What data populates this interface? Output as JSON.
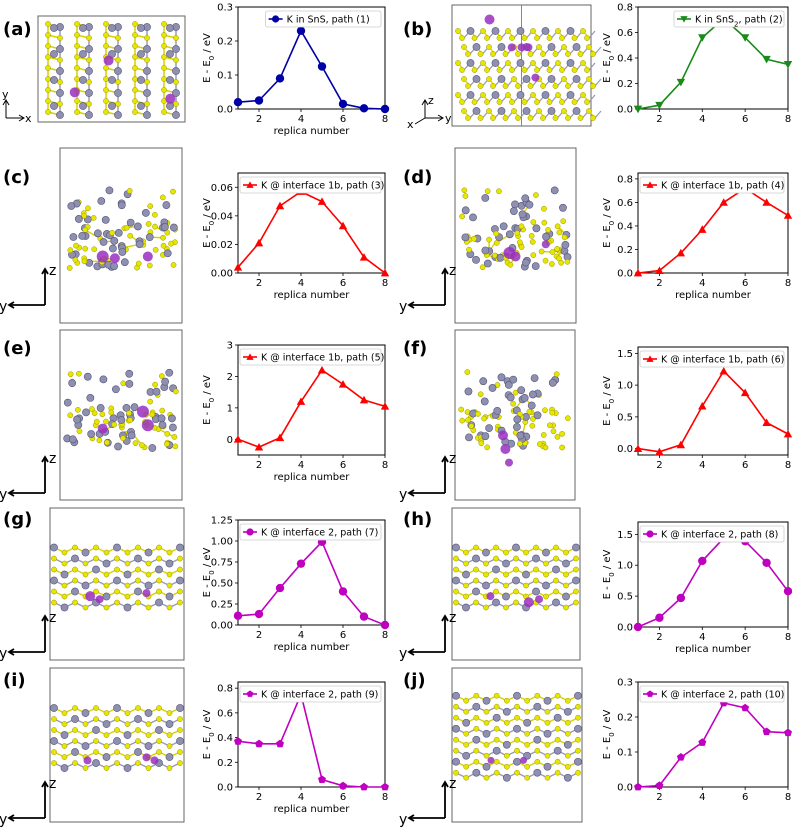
{
  "figure": {
    "colors": {
      "sn_atom": "#8f8fb0",
      "s_atom": "#e6e600",
      "bond_s": "#d8d000",
      "bond_sn": "#9a9ab8",
      "k_atom": "#9a2fc0"
    }
  },
  "chart_data": [
    {
      "panel": "(a)",
      "type": "line",
      "legend": "K in SnS, path (1)",
      "color": "#0000a8",
      "marker": "circle",
      "x": [
        1,
        2,
        3,
        4,
        5,
        6,
        7,
        8
      ],
      "values": [
        0.02,
        0.025,
        0.09,
        0.23,
        0.125,
        0.015,
        0.002,
        0.0
      ],
      "xlabel": "replica number",
      "ylabel": "E - E0 / eV",
      "ylabel_sub": "0",
      "xlim": [
        1,
        8
      ],
      "ylim": [
        0,
        0.3
      ],
      "xticks": [
        "2",
        "4",
        "6",
        "8"
      ],
      "yticks": [
        "0.0",
        "0.1",
        "0.2",
        "0.3"
      ],
      "ytick_values": [
        0,
        0.1,
        0.2,
        0.3
      ],
      "axes": {
        "x": "x",
        "y": "y"
      }
    },
    {
      "panel": "(b)",
      "type": "line",
      "legend": "K in SnS",
      "legend_sub": "2",
      "legend_tail": ", path (2)",
      "color": "#1a8a1a",
      "marker": "triangle-down",
      "x": [
        1,
        2,
        3,
        4,
        5,
        6,
        7,
        8
      ],
      "values": [
        0.0,
        0.03,
        0.21,
        0.56,
        0.71,
        0.56,
        0.39,
        0.35
      ],
      "xlabel": "",
      "ylabel": "E - E0 / eV",
      "ylabel_sub": "0",
      "xlim": [
        1,
        8
      ],
      "ylim": [
        0,
        0.8
      ],
      "xticks": [
        "2",
        "4",
        "6",
        "8"
      ],
      "yticks": [
        "0.0",
        "0.2",
        "0.4",
        "0.6",
        "0.8"
      ],
      "ytick_values": [
        0,
        0.2,
        0.4,
        0.6,
        0.8
      ],
      "axes": {
        "x": "x",
        "y": "y",
        "z": "z"
      }
    },
    {
      "panel": "(c)",
      "type": "line",
      "legend": "K @ interface 1b, path (3)",
      "color": "#ff0000",
      "marker": "triangle-up",
      "x": [
        1,
        2,
        3,
        4,
        5,
        6,
        7,
        8
      ],
      "values": [
        0.004,
        0.021,
        0.047,
        0.057,
        0.05,
        0.033,
        0.011,
        0.0
      ],
      "xlabel": "replica number",
      "ylabel": "E - E0 / eV",
      "ylabel_sub": "0",
      "xlim": [
        1,
        8
      ],
      "ylim": [
        0,
        0.07
      ],
      "xticks": [
        "2",
        "4",
        "6",
        "8"
      ],
      "yticks": [
        "0.00",
        "0.02",
        "0.04",
        "0.06"
      ],
      "ytick_values": [
        0,
        0.02,
        0.04,
        0.06
      ],
      "axes": {
        "z": "z",
        "y": "y"
      }
    },
    {
      "panel": "(d)",
      "type": "line",
      "legend": "K @ interface 1b, path (4)",
      "color": "#ff0000",
      "marker": "triangle-up",
      "x": [
        1,
        2,
        3,
        4,
        5,
        6,
        7,
        8
      ],
      "values": [
        0.0,
        0.02,
        0.17,
        0.37,
        0.6,
        0.72,
        0.6,
        0.49
      ],
      "xlabel": "replica number",
      "ylabel": "E - E0 / eV",
      "ylabel_sub": "0",
      "xlim": [
        1,
        8
      ],
      "ylim": [
        0,
        0.85
      ],
      "xticks": [
        "2",
        "4",
        "6",
        "8"
      ],
      "yticks": [
        "0.0",
        "0.2",
        "0.4",
        "0.6",
        "0.8"
      ],
      "ytick_values": [
        0,
        0.2,
        0.4,
        0.6,
        0.8
      ],
      "axes": {
        "z": "z",
        "y": "y"
      }
    },
    {
      "panel": "(e)",
      "type": "line",
      "legend": "K @ interface 1b, path (5)",
      "color": "#ff0000",
      "marker": "triangle-up",
      "x": [
        1,
        2,
        3,
        4,
        5,
        6,
        7,
        8
      ],
      "values": [
        0.0,
        -0.25,
        0.05,
        1.2,
        2.2,
        1.75,
        1.25,
        1.05
      ],
      "xlabel": "replica number",
      "ylabel": "E - E0 / eV",
      "ylabel_sub": "0",
      "xlim": [
        1,
        8
      ],
      "ylim": [
        -0.5,
        3
      ],
      "xticks": [
        "2",
        "4",
        "6",
        "8"
      ],
      "yticks": [
        "0",
        "1",
        "2",
        "3"
      ],
      "ytick_values": [
        0,
        1,
        2,
        3
      ],
      "axes": {
        "z": "z",
        "y": "y"
      }
    },
    {
      "panel": "(f)",
      "type": "line",
      "legend": "K @ interface 1b, path (6)",
      "color": "#ff0000",
      "marker": "triangle-up",
      "x": [
        1,
        2,
        3,
        4,
        5,
        6,
        7,
        8
      ],
      "values": [
        0.0,
        -0.05,
        0.06,
        0.67,
        1.22,
        0.88,
        0.41,
        0.23
      ],
      "xlabel": "",
      "ylabel": "E - E0 / eV",
      "ylabel_sub": "0",
      "xlim": [
        1,
        8
      ],
      "ylim": [
        -0.1,
        1.6
      ],
      "xticks": [
        "2",
        "4",
        "6",
        "8"
      ],
      "yticks": [
        "0.0",
        "0.5",
        "1.0",
        "1.5"
      ],
      "ytick_values": [
        0,
        0.5,
        1.0,
        1.5
      ],
      "axes": {
        "z": "z",
        "y": "y"
      }
    },
    {
      "panel": "(g)",
      "type": "line",
      "legend": "K @ interface 2, path (7)",
      "color": "#c000c0",
      "marker": "circle",
      "x": [
        1,
        2,
        3,
        4,
        5,
        6,
        7,
        8
      ],
      "values": [
        0.11,
        0.13,
        0.44,
        0.73,
        0.99,
        0.4,
        0.1,
        0.0
      ],
      "xlabel": "replica number",
      "ylabel": "E - E0 / eV",
      "ylabel_sub": "0",
      "xlim": [
        1,
        8
      ],
      "ylim": [
        0,
        1.25
      ],
      "xticks": [
        "2",
        "4",
        "6",
        "8"
      ],
      "yticks": [
        "0.00",
        "0.25",
        "0.50",
        "0.75",
        "1.00",
        "1.25"
      ],
      "ytick_values": [
        0,
        0.25,
        0.5,
        0.75,
        1.0,
        1.25
      ],
      "axes": {
        "z": "z",
        "y": "y"
      }
    },
    {
      "panel": "(h)",
      "type": "line",
      "legend": "K @ interface 2, path (8)",
      "color": "#c000c0",
      "marker": "circle",
      "x": [
        1,
        2,
        3,
        4,
        5,
        6,
        7,
        8
      ],
      "values": [
        0.0,
        0.15,
        0.47,
        1.07,
        1.44,
        1.39,
        1.04,
        0.58
      ],
      "xlabel": "replica number",
      "ylabel": "E - E0 / eV",
      "ylabel_sub": "0",
      "xlim": [
        1,
        8
      ],
      "ylim": [
        0,
        1.7
      ],
      "xticks": [
        "2",
        "4",
        "6",
        "8"
      ],
      "yticks": [
        "0.0",
        "0.5",
        "1.0",
        "1.5"
      ],
      "ytick_values": [
        0,
        0.5,
        1.0,
        1.5
      ],
      "axes": {
        "z": "z",
        "y": "y"
      }
    },
    {
      "panel": "(i)",
      "type": "line",
      "legend": "K @ interface 2, path (9)",
      "color": "#c000c0",
      "marker": "pentagon",
      "x": [
        1,
        2,
        3,
        4,
        5,
        6,
        7,
        8
      ],
      "values": [
        0.37,
        0.35,
        0.35,
        0.75,
        0.06,
        0.01,
        0.0,
        0.0
      ],
      "xlabel": "replica number",
      "ylabel": "E - E0 / eV",
      "ylabel_sub": "0",
      "xlim": [
        1,
        8
      ],
      "ylim": [
        0,
        0.85
      ],
      "xticks": [
        "2",
        "4",
        "6",
        "8"
      ],
      "yticks": [
        "0.0",
        "0.2",
        "0.4",
        "0.6",
        "0.8"
      ],
      "ytick_values": [
        0,
        0.2,
        0.4,
        0.6,
        0.8
      ],
      "axes": {
        "z": "z",
        "y": "y"
      }
    },
    {
      "panel": "(j)",
      "type": "line",
      "legend": "K @ interface 2, path (10)",
      "color": "#c000c0",
      "marker": "pentagon",
      "x": [
        1,
        2,
        3,
        4,
        5,
        6,
        7,
        8
      ],
      "values": [
        0.0,
        0.004,
        0.085,
        0.127,
        0.24,
        0.226,
        0.158,
        0.155
      ],
      "xlabel": "",
      "ylabel": "E - E0 / eV",
      "ylabel_sub": "0",
      "xlim": [
        1,
        8
      ],
      "ylim": [
        0,
        0.3
      ],
      "xticks": [
        "2",
        "4",
        "6",
        "8"
      ],
      "yticks": [
        "0.0",
        "0.1",
        "0.2",
        "0.3"
      ],
      "ytick_values": [
        0,
        0.1,
        0.2,
        0.3
      ],
      "axes": {
        "z": "z",
        "y": "y"
      }
    }
  ]
}
